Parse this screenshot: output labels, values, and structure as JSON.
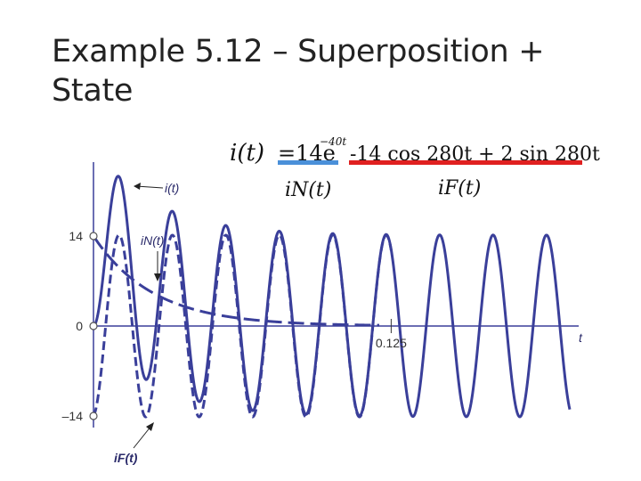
{
  "slide": {
    "title_line1": "Example 5.12 – Superposition +",
    "title_line2": "State"
  },
  "equation": {
    "lhs": "i(t)",
    "natural_term": "=14e",
    "natural_exp": "−40t",
    "forced_term": "-14 cos 280t + 2 sin 280t",
    "natural_label": "iN(t)",
    "forced_label": "iF(t)",
    "natural_underline_color": "#4a90d9",
    "forced_underline_color": "#e02020"
  },
  "chart_data": {
    "type": "line",
    "x_tick_labels": [
      "0.125"
    ],
    "x_ticks": [
      0.125
    ],
    "y_tick_labels": [
      "14",
      "0",
      "–14"
    ],
    "y_ticks": [
      14,
      0,
      -14
    ],
    "xlabel": "t",
    "xlim": [
      0,
      0.2
    ],
    "ylim": [
      -20,
      22
    ],
    "series": [
      {
        "name": "i(t)",
        "style": "solid",
        "color": "#3a3f9a",
        "formula": "14e^(-40t) - 14cos(280t) + 2sin(280t)"
      },
      {
        "name": "iN(t)",
        "style": "long-dash",
        "color": "#3a3f9a",
        "formula": "14e^(-40t)"
      },
      {
        "name": "iF(t)",
        "style": "dash",
        "color": "#3a3f9a",
        "formula": "-14cos(280t) + 2sin(280t)"
      }
    ],
    "annotations": [
      {
        "text": "i(t)",
        "target": "i(t)"
      },
      {
        "text": "iN(t)",
        "target": "iN(t)"
      },
      {
        "text": "iF(t)",
        "target": "iF(t)"
      }
    ]
  }
}
